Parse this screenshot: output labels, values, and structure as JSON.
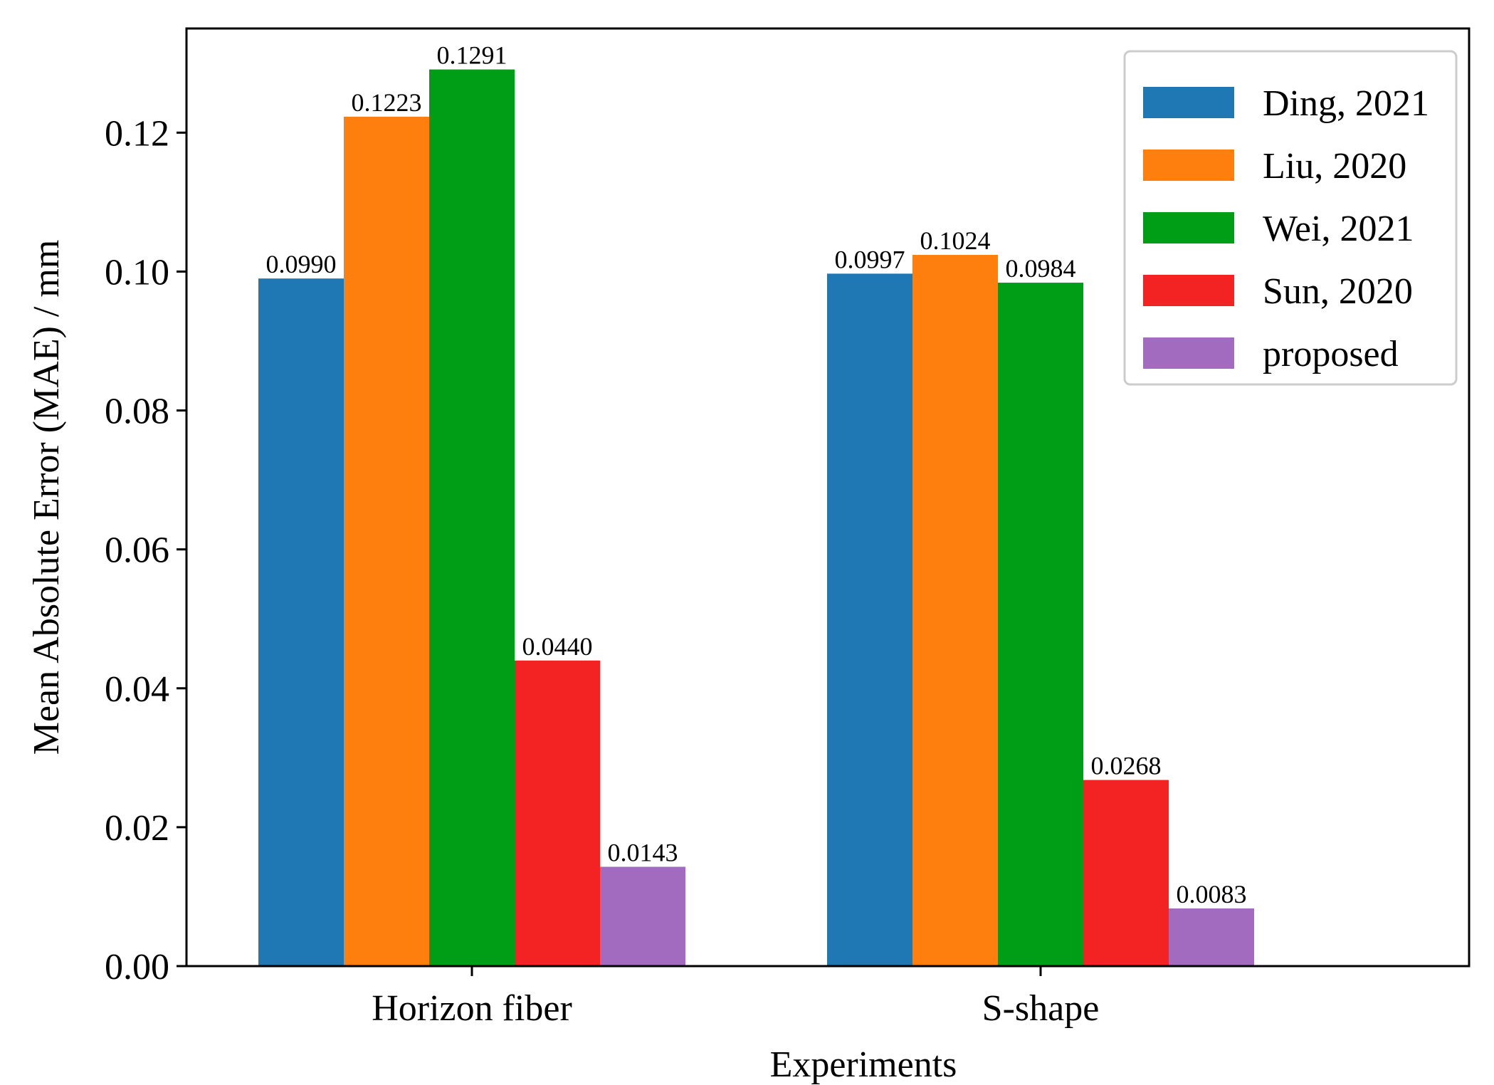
{
  "chart_data": {
    "type": "bar",
    "title": "",
    "xlabel": "Experiments",
    "ylabel": "Mean Absolute Error (MAE) / mm",
    "categories": [
      "Horizon fiber",
      "S-shape"
    ],
    "ylim": [
      0,
      0.135
    ],
    "yticks": [
      0.0,
      0.02,
      0.04,
      0.06,
      0.08,
      0.1,
      0.12
    ],
    "ytick_labels": [
      "0.00",
      "0.02",
      "0.04",
      "0.06",
      "0.08",
      "0.10",
      "0.12"
    ],
    "grid": false,
    "legend_position": "top-right",
    "series": [
      {
        "name": "Ding, 2021",
        "color": "#1f77b4",
        "values": [
          0.099,
          0.0997
        ],
        "labels": [
          "0.0990",
          "0.0997"
        ]
      },
      {
        "name": "Liu, 2020",
        "color": "#ff7f0e",
        "values": [
          0.1223,
          0.1024
        ],
        "labels": [
          "0.1223",
          "0.1024"
        ]
      },
      {
        "name": "Wei, 2021",
        "color": "#009e17",
        "values": [
          0.1291,
          0.0984
        ],
        "labels": [
          "0.1291",
          "0.0984"
        ]
      },
      {
        "name": "Sun, 2020",
        "color": "#f42323",
        "values": [
          0.044,
          0.0268
        ],
        "labels": [
          "0.0440",
          "0.0268"
        ]
      },
      {
        "name": "proposed",
        "color": "#a36bbf",
        "values": [
          0.0143,
          0.0083
        ],
        "labels": [
          "0.0143",
          "0.0083"
        ]
      }
    ]
  }
}
